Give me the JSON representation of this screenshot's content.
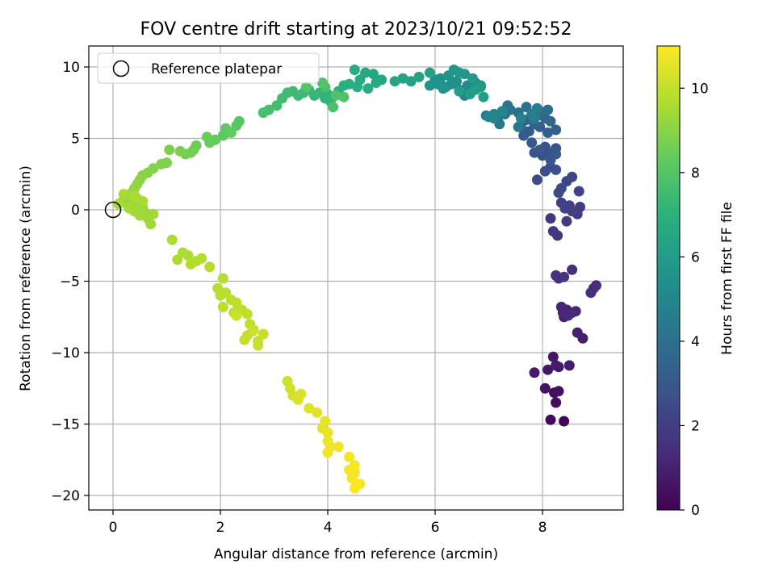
{
  "chart_data": {
    "type": "scatter",
    "title": "FOV centre drift starting at 2023/10/21 09:52:52",
    "xlabel": "Angular distance from reference (arcmin)",
    "ylabel": "Rotation from reference (arcmin)",
    "xlim": [
      -0.45,
      9.5
    ],
    "ylim": [
      -21,
      11.5
    ],
    "xticks": [
      0,
      2,
      4,
      6,
      8
    ],
    "yticks": [
      -20,
      -15,
      -10,
      -5,
      0,
      5,
      10
    ],
    "grid": true,
    "legend": {
      "location": "top-left",
      "entries": [
        "Reference platepar"
      ]
    },
    "reference_point": {
      "x": 0,
      "y": 0
    },
    "colorbar": {
      "label": "Hours from first FF file",
      "range": [
        0,
        11
      ],
      "ticks": [
        0,
        2,
        4,
        6,
        8,
        10
      ],
      "colormap": "viridis"
    },
    "points": [
      [
        8.4,
        -14.8,
        0.1
      ],
      [
        8.15,
        -14.7,
        0.2
      ],
      [
        8.25,
        -13.5,
        0.3
      ],
      [
        8.22,
        -12.8,
        0.4
      ],
      [
        8.3,
        -12.7,
        0.5
      ],
      [
        8.05,
        -12.5,
        0.55
      ],
      [
        8.3,
        -11.0,
        0.6
      ],
      [
        8.2,
        -10.3,
        0.65
      ],
      [
        8.1,
        -11.2,
        0.7
      ],
      [
        7.85,
        -11.4,
        0.75
      ],
      [
        8.5,
        -10.9,
        0.8
      ],
      [
        8.25,
        -10.9,
        0.85
      ],
      [
        8.75,
        -9.0,
        0.9
      ],
      [
        8.65,
        -8.6,
        0.95
      ],
      [
        8.4,
        -7.5,
        1.0
      ],
      [
        8.55,
        -7.2,
        1.05
      ],
      [
        8.45,
        -7.0,
        1.1
      ],
      [
        8.35,
        -6.8,
        1.15
      ],
      [
        8.38,
        -7.2,
        1.2
      ],
      [
        8.62,
        -7.1,
        1.25
      ],
      [
        8.48,
        -7.4,
        1.3
      ],
      [
        9.0,
        -5.3,
        1.35
      ],
      [
        8.95,
        -5.5,
        1.4
      ],
      [
        8.9,
        -5.8,
        1.45
      ],
      [
        8.55,
        -4.2,
        1.5
      ],
      [
        8.3,
        -4.8,
        1.55
      ],
      [
        8.25,
        -4.6,
        1.6
      ],
      [
        8.4,
        -4.7,
        1.65
      ],
      [
        8.2,
        -1.5,
        1.7
      ],
      [
        8.28,
        -1.8,
        1.75
      ],
      [
        8.15,
        -0.6,
        1.8
      ],
      [
        8.45,
        -0.8,
        1.85
      ],
      [
        8.65,
        -0.3,
        1.9
      ],
      [
        8.7,
        0.2,
        1.95
      ],
      [
        8.5,
        0.3,
        2.0
      ],
      [
        8.35,
        0.5,
        2.05
      ],
      [
        8.42,
        0.1,
        2.1
      ],
      [
        8.55,
        -0.1,
        2.15
      ],
      [
        8.68,
        1.3,
        2.2
      ],
      [
        8.55,
        2.3,
        2.3
      ],
      [
        8.45,
        2.0,
        2.35
      ],
      [
        8.35,
        1.5,
        2.4
      ],
      [
        8.3,
        1.2,
        2.45
      ],
      [
        7.9,
        2.1,
        2.5
      ],
      [
        8.05,
        2.7,
        2.55
      ],
      [
        8.15,
        3.0,
        2.6
      ],
      [
        8.25,
        2.8,
        2.65
      ],
      [
        8.0,
        3.8,
        2.7
      ],
      [
        8.15,
        4.0,
        2.75
      ],
      [
        8.25,
        4.3,
        2.8
      ],
      [
        8.05,
        4.4,
        2.85
      ],
      [
        7.85,
        4.0,
        2.9
      ],
      [
        7.95,
        4.2,
        2.95
      ],
      [
        8.15,
        3.5,
        3.0
      ],
      [
        8.25,
        3.9,
        3.05
      ],
      [
        7.8,
        4.7,
        3.1
      ],
      [
        7.65,
        5.2,
        3.15
      ],
      [
        7.75,
        5.5,
        3.2
      ],
      [
        7.95,
        5.8,
        3.25
      ],
      [
        8.1,
        5.4,
        3.3
      ],
      [
        8.25,
        5.6,
        3.4
      ],
      [
        7.6,
        5.8,
        3.45
      ],
      [
        7.85,
        6.0,
        3.5
      ],
      [
        7.7,
        6.3,
        3.55
      ],
      [
        7.9,
        6.6,
        3.6
      ],
      [
        8.05,
        6.4,
        3.65
      ],
      [
        8.15,
        6.2,
        3.7
      ],
      [
        7.95,
        6.9,
        3.8
      ],
      [
        8.1,
        7.0,
        3.9
      ],
      [
        7.7,
        7.2,
        4.0
      ],
      [
        7.55,
        6.8,
        4.05
      ],
      [
        7.4,
        7.0,
        4.1
      ],
      [
        7.3,
        6.7,
        4.15
      ],
      [
        7.2,
        6.6,
        4.2
      ],
      [
        7.35,
        7.3,
        4.25
      ],
      [
        7.2,
        6.0,
        4.3
      ],
      [
        7.55,
        5.8,
        4.35
      ],
      [
        7.1,
        6.6,
        4.4
      ],
      [
        6.95,
        6.6,
        4.5
      ],
      [
        7.9,
        7.1,
        4.55
      ],
      [
        7.85,
        6.4,
        4.6
      ],
      [
        7.8,
        6.7,
        4.7
      ],
      [
        7.1,
        6.4,
        4.8
      ],
      [
        7.0,
        6.5,
        4.85
      ],
      [
        7.6,
        6.4,
        4.9
      ],
      [
        7.25,
        6.9,
        4.95
      ],
      [
        7.1,
        6.7,
        5.0
      ],
      [
        6.55,
        8.0,
        5.05
      ],
      [
        6.45,
        8.4,
        5.1
      ],
      [
        6.6,
        8.7,
        5.15
      ],
      [
        6.75,
        8.9,
        5.2
      ],
      [
        6.85,
        8.7,
        5.25
      ],
      [
        6.3,
        8.8,
        5.3
      ],
      [
        6.2,
        8.6,
        5.35
      ],
      [
        6.4,
        9.0,
        5.4
      ],
      [
        6.1,
        9.2,
        5.45
      ],
      [
        6.0,
        9.1,
        5.5
      ],
      [
        6.05,
        8.8,
        5.55
      ],
      [
        5.9,
        8.7,
        5.6
      ],
      [
        6.15,
        8.5,
        5.65
      ],
      [
        6.25,
        9.4,
        5.7
      ],
      [
        6.35,
        9.8,
        5.75
      ],
      [
        6.45,
        9.6,
        5.8
      ],
      [
        6.55,
        9.5,
        5.85
      ],
      [
        6.7,
        9.2,
        5.9
      ],
      [
        6.85,
        8.6,
        5.95
      ],
      [
        6.65,
        8.1,
        6.0
      ],
      [
        6.45,
        8.3,
        6.05
      ],
      [
        6.75,
        8.4,
        6.1
      ],
      [
        6.9,
        7.9,
        6.15
      ],
      [
        5.9,
        9.6,
        6.2
      ],
      [
        5.7,
        9.3,
        6.25
      ],
      [
        5.55,
        9.0,
        6.3
      ],
      [
        5.4,
        9.2,
        6.35
      ],
      [
        5.25,
        9.0,
        6.4
      ],
      [
        5.0,
        9.1,
        6.5
      ],
      [
        4.85,
        9.5,
        6.55
      ],
      [
        4.7,
        9.6,
        6.6
      ],
      [
        4.9,
        8.9,
        6.65
      ],
      [
        4.6,
        9.1,
        6.7
      ],
      [
        4.5,
        9.8,
        6.75
      ],
      [
        4.75,
        8.5,
        6.8
      ],
      [
        4.55,
        8.6,
        6.85
      ],
      [
        4.4,
        8.8,
        6.9
      ],
      [
        4.3,
        8.7,
        6.95
      ],
      [
        4.2,
        8.3,
        7.0
      ],
      [
        4.0,
        8.1,
        7.05
      ],
      [
        4.05,
        7.6,
        7.1
      ],
      [
        3.95,
        7.8,
        7.15
      ],
      [
        3.85,
        8.2,
        7.2
      ],
      [
        3.75,
        8.0,
        7.25
      ],
      [
        3.65,
        8.4,
        7.3
      ],
      [
        3.55,
        8.2,
        7.35
      ],
      [
        3.45,
        8.0,
        7.4
      ],
      [
        3.35,
        8.3,
        7.45
      ],
      [
        3.25,
        8.2,
        7.5
      ],
      [
        3.15,
        7.8,
        7.55
      ],
      [
        3.05,
        7.3,
        7.6
      ],
      [
        2.9,
        7.0,
        7.65
      ],
      [
        2.8,
        6.8,
        7.7
      ],
      [
        4.1,
        7.2,
        7.75
      ],
      [
        3.95,
        8.6,
        7.8
      ],
      [
        4.15,
        8.0,
        7.85
      ],
      [
        4.3,
        7.9,
        7.9
      ],
      [
        3.9,
        8.9,
        7.95
      ],
      [
        3.6,
        8.6,
        8.0
      ],
      [
        2.35,
        6.2,
        8.05
      ],
      [
        2.3,
        5.9,
        8.1
      ],
      [
        2.15,
        5.5,
        8.15
      ],
      [
        2.05,
        5.2,
        8.2
      ],
      [
        2.1,
        5.7,
        8.25
      ],
      [
        2.2,
        5.4,
        8.3
      ],
      [
        1.9,
        4.9,
        8.35
      ],
      [
        1.8,
        4.7,
        8.4
      ],
      [
        1.75,
        5.1,
        8.45
      ],
      [
        1.55,
        4.5,
        8.5
      ],
      [
        1.5,
        4.2,
        8.55
      ],
      [
        1.45,
        4.0,
        8.6
      ],
      [
        1.35,
        3.9,
        8.65
      ],
      [
        1.25,
        4.1,
        8.7
      ],
      [
        1.05,
        4.2,
        8.75
      ],
      [
        1.0,
        3.3,
        8.8
      ],
      [
        0.9,
        3.2,
        8.85
      ],
      [
        0.75,
        2.9,
        8.9
      ],
      [
        0.65,
        2.6,
        8.95
      ],
      [
        0.55,
        2.4,
        9.0
      ],
      [
        0.5,
        2.1,
        9.05
      ],
      [
        0.45,
        1.8,
        9.1
      ],
      [
        0.4,
        1.5,
        9.15
      ],
      [
        0.35,
        1.2,
        9.2
      ],
      [
        0.3,
        0.9,
        9.22
      ],
      [
        0.25,
        1.0,
        9.24
      ],
      [
        0.2,
        0.7,
        9.26
      ],
      [
        0.15,
        0.5,
        9.28
      ],
      [
        0.35,
        0.6,
        9.3
      ],
      [
        0.45,
        0.4,
        9.32
      ],
      [
        0.55,
        0.2,
        9.34
      ],
      [
        0.6,
        -0.2,
        9.36
      ],
      [
        0.65,
        -0.6,
        9.38
      ],
      [
        0.7,
        -1.0,
        9.4
      ],
      [
        0.75,
        -0.3,
        9.42
      ],
      [
        0.5,
        -0.4,
        9.44
      ],
      [
        0.4,
        -0.1,
        9.46
      ],
      [
        0.3,
        0.1,
        9.48
      ],
      [
        0.45,
        0.8,
        9.5
      ],
      [
        0.55,
        0.6,
        9.52
      ],
      [
        0.2,
        1.1,
        9.54
      ],
      [
        0.1,
        0.4,
        9.56
      ],
      [
        0.4,
        1.0,
        9.58
      ],
      [
        1.1,
        -2.1,
        9.6
      ],
      [
        1.2,
        -3.5,
        9.62
      ],
      [
        1.3,
        -3.0,
        9.64
      ],
      [
        1.4,
        -3.2,
        9.66
      ],
      [
        1.45,
        -3.8,
        9.68
      ],
      [
        1.55,
        -3.6,
        9.7
      ],
      [
        1.65,
        -3.4,
        9.72
      ],
      [
        1.8,
        -4.0,
        9.74
      ],
      [
        2.05,
        -4.8,
        9.76
      ],
      [
        1.95,
        -5.5,
        9.78
      ],
      [
        2.0,
        -6.0,
        9.8
      ],
      [
        2.1,
        -5.8,
        9.82
      ],
      [
        2.2,
        -6.3,
        9.84
      ],
      [
        2.3,
        -6.5,
        9.86
      ],
      [
        2.05,
        -6.8,
        9.88
      ],
      [
        2.25,
        -7.2,
        9.9
      ],
      [
        2.4,
        -7.0,
        9.92
      ],
      [
        2.5,
        -7.3,
        9.94
      ],
      [
        2.55,
        -8.0,
        9.96
      ],
      [
        2.6,
        -8.5,
        9.98
      ],
      [
        2.5,
        -8.8,
        10.0
      ],
      [
        2.45,
        -9.1,
        10.02
      ],
      [
        2.7,
        -9.2,
        10.04
      ],
      [
        2.8,
        -8.7,
        10.06
      ],
      [
        2.7,
        -9.5,
        10.08
      ],
      [
        2.3,
        -7.4,
        10.1
      ],
      [
        2.62,
        -8.4,
        10.12
      ],
      [
        3.25,
        -12.0,
        10.2
      ],
      [
        3.3,
        -12.5,
        10.25
      ],
      [
        3.35,
        -13.0,
        10.3
      ],
      [
        3.5,
        -12.9,
        10.35
      ],
      [
        3.45,
        -13.3,
        10.4
      ],
      [
        3.65,
        -13.9,
        10.45
      ],
      [
        3.8,
        -14.2,
        10.5
      ],
      [
        3.9,
        -15.3,
        10.55
      ],
      [
        3.95,
        -14.8,
        10.6
      ],
      [
        4.0,
        -15.6,
        10.65
      ],
      [
        4.0,
        -16.2,
        10.7
      ],
      [
        4.05,
        -16.6,
        10.75
      ],
      [
        4.0,
        -17.0,
        10.78
      ],
      [
        4.2,
        -16.6,
        10.8
      ],
      [
        4.4,
        -17.3,
        10.83
      ],
      [
        4.5,
        -17.9,
        10.86
      ],
      [
        4.4,
        -18.2,
        10.88
      ],
      [
        4.5,
        -18.4,
        10.9
      ],
      [
        4.45,
        -18.8,
        10.92
      ],
      [
        4.55,
        -19.2,
        10.94
      ],
      [
        4.5,
        -19.5,
        10.96
      ],
      [
        4.6,
        -19.2,
        10.98
      ]
    ]
  }
}
